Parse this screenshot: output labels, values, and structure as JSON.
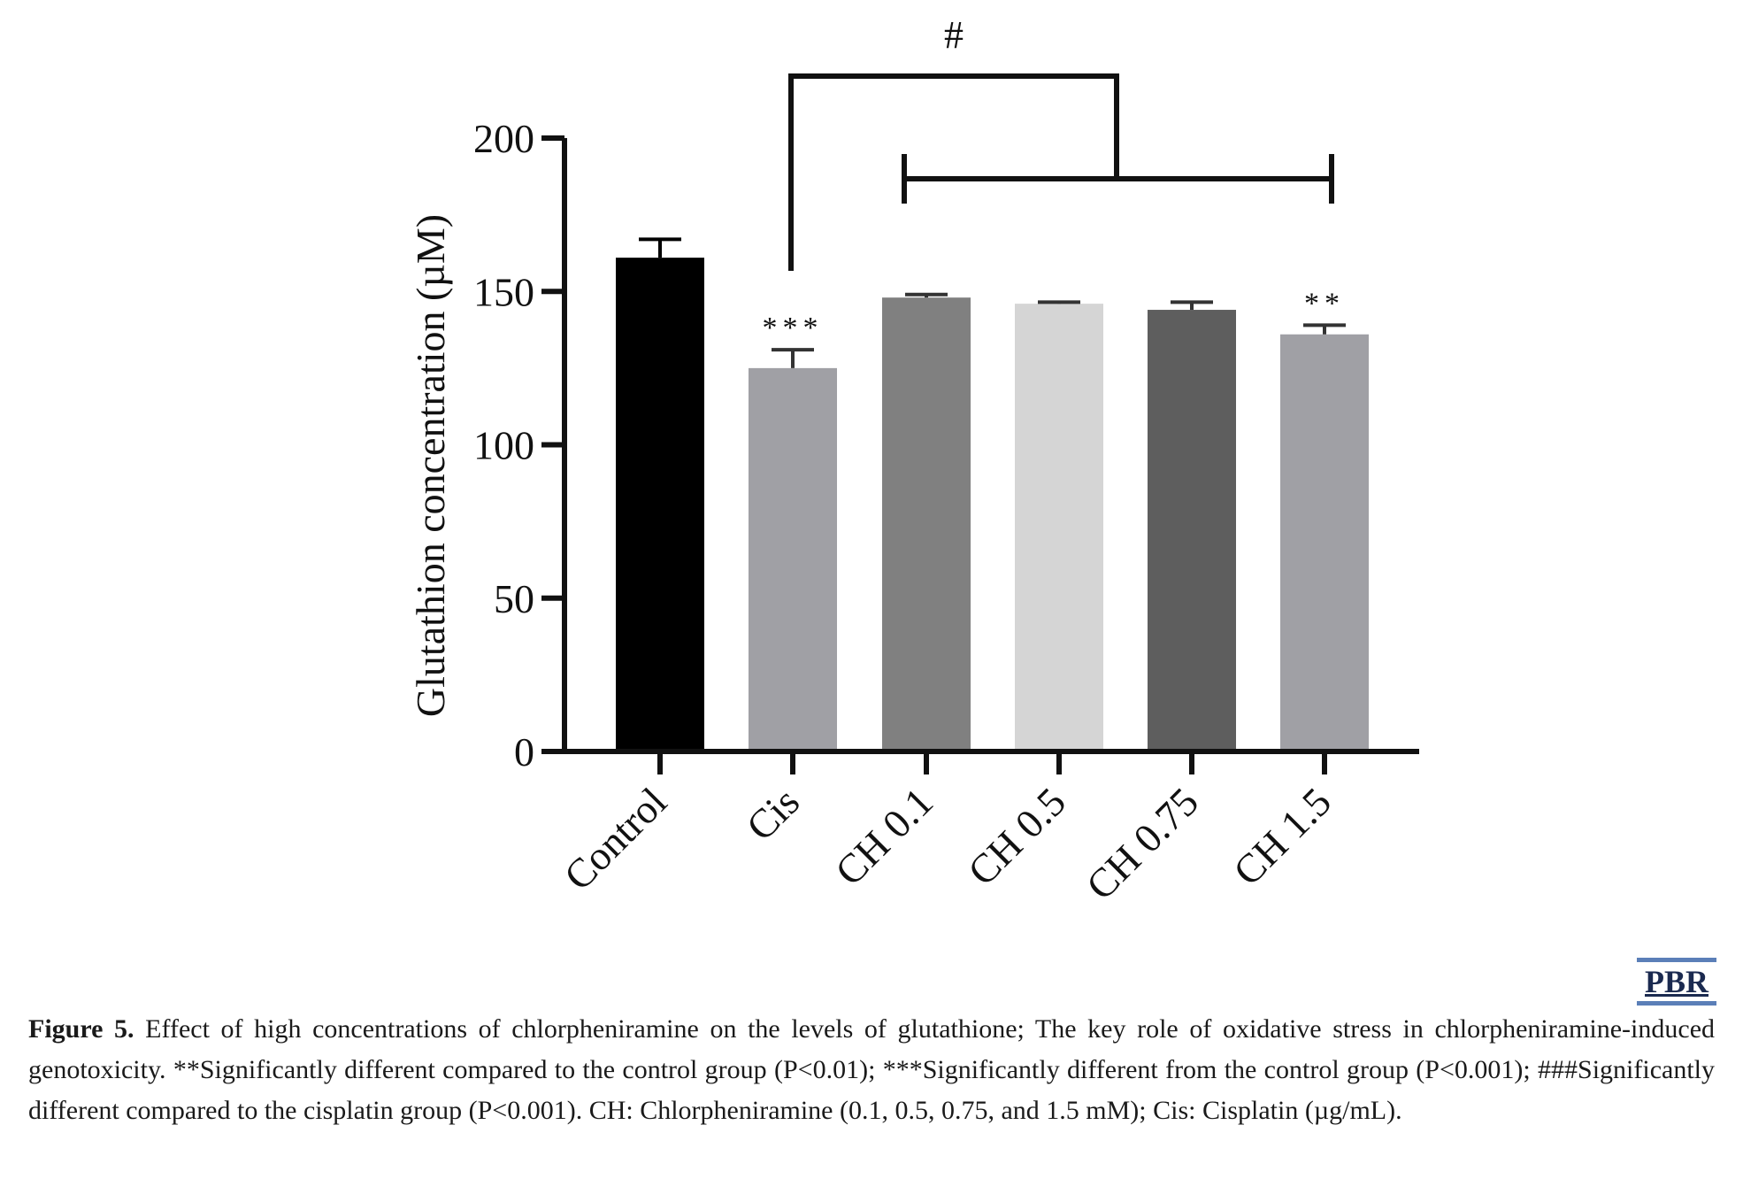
{
  "chart_data": {
    "type": "bar",
    "categories": [
      "Control",
      "Cis",
      "CH 0.1",
      "CH 0.5",
      "CH 0.75",
      "CH 1.5"
    ],
    "values": [
      161,
      125,
      148,
      146,
      144,
      136
    ],
    "errors": [
      6,
      6,
      1,
      0.5,
      2.5,
      3
    ],
    "bar_colors": [
      "#000000",
      "#a0a0a5",
      "#808080",
      "#d5d5d5",
      "#5e5e5e",
      "#a0a0a5"
    ],
    "significance_marks": [
      "",
      "***",
      "",
      "",
      "",
      "**"
    ],
    "bracket_label": "#",
    "ylabel": "Glutathion concentration (µM)",
    "xlabel": "",
    "ylim": [
      0,
      200
    ],
    "yticks": [
      0,
      50,
      100,
      150,
      200
    ],
    "grid": false
  },
  "logo": {
    "text": "PBR"
  },
  "caption": {
    "figure_label": "Figure 5.",
    "text": " Effect of high concentrations of chlorpheniramine on the levels of glutathione; The key role of oxidative stress in chlorpheniramine-induced genotoxicity. **Significantly different compared to the control group (P<0.01); ***Significantly different from the control group (P<0.001); ###Significantly different compared to the cisplatin group (P<0.001). CH: Chlorpheniramine (0.1, 0.5, 0.75, and 1.5 mM); Cis: Cisplatin (µg/mL)."
  }
}
